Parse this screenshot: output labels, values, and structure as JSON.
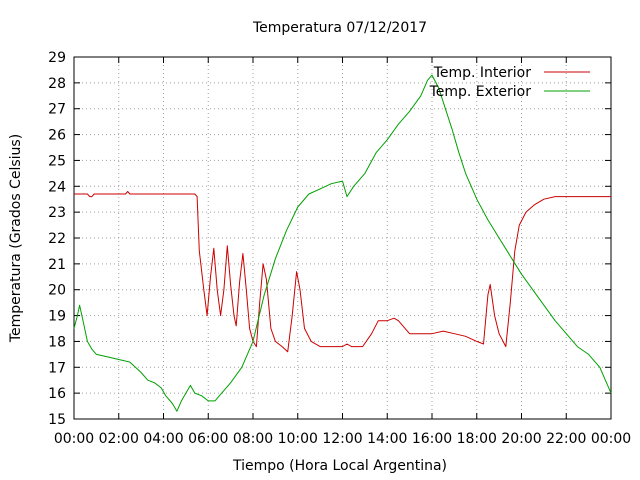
{
  "chart_data": {
    "type": "line",
    "title": "Temperatura 07/12/2017",
    "xlabel": "Tiempo (Hora Local Argentina)",
    "ylabel": "Temperatura (Grados Celsius)",
    "xlim": [
      0,
      24
    ],
    "ylim": [
      15,
      29
    ],
    "x_tick_labels": [
      "00:00",
      "02:00",
      "04:00",
      "06:00",
      "08:00",
      "10:00",
      "12:00",
      "14:00",
      "16:00",
      "18:00",
      "20:00",
      "22:00",
      "00:00"
    ],
    "y_ticks": [
      15,
      16,
      17,
      18,
      19,
      20,
      21,
      22,
      23,
      24,
      25,
      26,
      27,
      28,
      29
    ],
    "grid": true,
    "legend_position": "top-right",
    "series": [
      {
        "name": "Temp. Interior",
        "color": "#cc0000",
        "points": [
          [
            0,
            23.7
          ],
          [
            0.6,
            23.7
          ],
          [
            0.7,
            23.6
          ],
          [
            0.8,
            23.6
          ],
          [
            0.9,
            23.7
          ],
          [
            2.3,
            23.7
          ],
          [
            2.4,
            23.8
          ],
          [
            2.5,
            23.7
          ],
          [
            4.5,
            23.7
          ],
          [
            5.4,
            23.7
          ],
          [
            5.5,
            23.6
          ],
          [
            5.6,
            21.5
          ],
          [
            5.8,
            20.0
          ],
          [
            5.95,
            19.0
          ],
          [
            6.1,
            20.5
          ],
          [
            6.25,
            21.6
          ],
          [
            6.4,
            20.0
          ],
          [
            6.55,
            19.0
          ],
          [
            6.7,
            20.0
          ],
          [
            6.85,
            21.7
          ],
          [
            7.0,
            20.2
          ],
          [
            7.15,
            19.0
          ],
          [
            7.25,
            18.6
          ],
          [
            7.4,
            20.3
          ],
          [
            7.55,
            21.4
          ],
          [
            7.7,
            20.0
          ],
          [
            7.85,
            18.5
          ],
          [
            8.0,
            18.0
          ],
          [
            8.15,
            17.8
          ],
          [
            8.3,
            19.5
          ],
          [
            8.45,
            21.0
          ],
          [
            8.6,
            20.4
          ],
          [
            8.8,
            18.5
          ],
          [
            9.0,
            18.0
          ],
          [
            9.3,
            17.8
          ],
          [
            9.55,
            17.6
          ],
          [
            9.75,
            19.0
          ],
          [
            9.95,
            20.7
          ],
          [
            10.1,
            20.0
          ],
          [
            10.3,
            18.5
          ],
          [
            10.6,
            18.0
          ],
          [
            11.0,
            17.8
          ],
          [
            11.5,
            17.8
          ],
          [
            12.0,
            17.8
          ],
          [
            12.2,
            17.9
          ],
          [
            12.4,
            17.8
          ],
          [
            12.9,
            17.8
          ],
          [
            13.3,
            18.3
          ],
          [
            13.6,
            18.8
          ],
          [
            14.0,
            18.8
          ],
          [
            14.3,
            18.9
          ],
          [
            14.5,
            18.8
          ],
          [
            15.0,
            18.3
          ],
          [
            15.5,
            18.3
          ],
          [
            16.0,
            18.3
          ],
          [
            16.5,
            18.4
          ],
          [
            17.0,
            18.3
          ],
          [
            17.5,
            18.2
          ],
          [
            18.0,
            18.0
          ],
          [
            18.3,
            17.9
          ],
          [
            18.5,
            19.8
          ],
          [
            18.6,
            20.2
          ],
          [
            18.8,
            19.0
          ],
          [
            19.0,
            18.3
          ],
          [
            19.3,
            17.8
          ],
          [
            19.5,
            19.5
          ],
          [
            19.7,
            21.5
          ],
          [
            19.9,
            22.5
          ],
          [
            20.2,
            23.0
          ],
          [
            20.6,
            23.3
          ],
          [
            21.0,
            23.5
          ],
          [
            21.5,
            23.6
          ],
          [
            22,
            23.6
          ],
          [
            23,
            23.6
          ],
          [
            24,
            23.6
          ]
        ]
      },
      {
        "name": "Temp. Exterior",
        "color": "#00a000",
        "points": [
          [
            0,
            18.5
          ],
          [
            0.15,
            19.0
          ],
          [
            0.25,
            19.4
          ],
          [
            0.4,
            18.8
          ],
          [
            0.6,
            18.0
          ],
          [
            0.8,
            17.7
          ],
          [
            1.0,
            17.5
          ],
          [
            1.5,
            17.4
          ],
          [
            2.0,
            17.3
          ],
          [
            2.5,
            17.2
          ],
          [
            3.0,
            16.8
          ],
          [
            3.3,
            16.5
          ],
          [
            3.6,
            16.4
          ],
          [
            3.9,
            16.2
          ],
          [
            4.1,
            15.9
          ],
          [
            4.4,
            15.6
          ],
          [
            4.6,
            15.3
          ],
          [
            4.8,
            15.7
          ],
          [
            5.0,
            16.0
          ],
          [
            5.2,
            16.3
          ],
          [
            5.4,
            16.0
          ],
          [
            5.7,
            15.9
          ],
          [
            6.0,
            15.7
          ],
          [
            6.3,
            15.7
          ],
          [
            6.6,
            16.0
          ],
          [
            7.0,
            16.4
          ],
          [
            7.5,
            17.0
          ],
          [
            8.0,
            18.0
          ],
          [
            8.5,
            19.8
          ],
          [
            9.0,
            21.2
          ],
          [
            9.5,
            22.3
          ],
          [
            10.0,
            23.2
          ],
          [
            10.5,
            23.7
          ],
          [
            11.0,
            23.9
          ],
          [
            11.5,
            24.1
          ],
          [
            12.0,
            24.2
          ],
          [
            12.2,
            23.6
          ],
          [
            12.5,
            24.0
          ],
          [
            13.0,
            24.5
          ],
          [
            13.5,
            25.3
          ],
          [
            14.0,
            25.8
          ],
          [
            14.5,
            26.4
          ],
          [
            15.0,
            26.9
          ],
          [
            15.5,
            27.5
          ],
          [
            15.8,
            28.1
          ],
          [
            16.0,
            28.3
          ],
          [
            16.3,
            27.8
          ],
          [
            16.6,
            27.0
          ],
          [
            16.9,
            26.2
          ],
          [
            17.2,
            25.3
          ],
          [
            17.5,
            24.5
          ],
          [
            18.0,
            23.5
          ],
          [
            18.5,
            22.7
          ],
          [
            19.0,
            22.0
          ],
          [
            19.5,
            21.3
          ],
          [
            20.0,
            20.6
          ],
          [
            20.5,
            20.0
          ],
          [
            21.0,
            19.4
          ],
          [
            21.5,
            18.8
          ],
          [
            22.0,
            18.3
          ],
          [
            22.5,
            17.8
          ],
          [
            23.0,
            17.5
          ],
          [
            23.5,
            17.0
          ],
          [
            24.0,
            16.0
          ]
        ]
      }
    ]
  }
}
